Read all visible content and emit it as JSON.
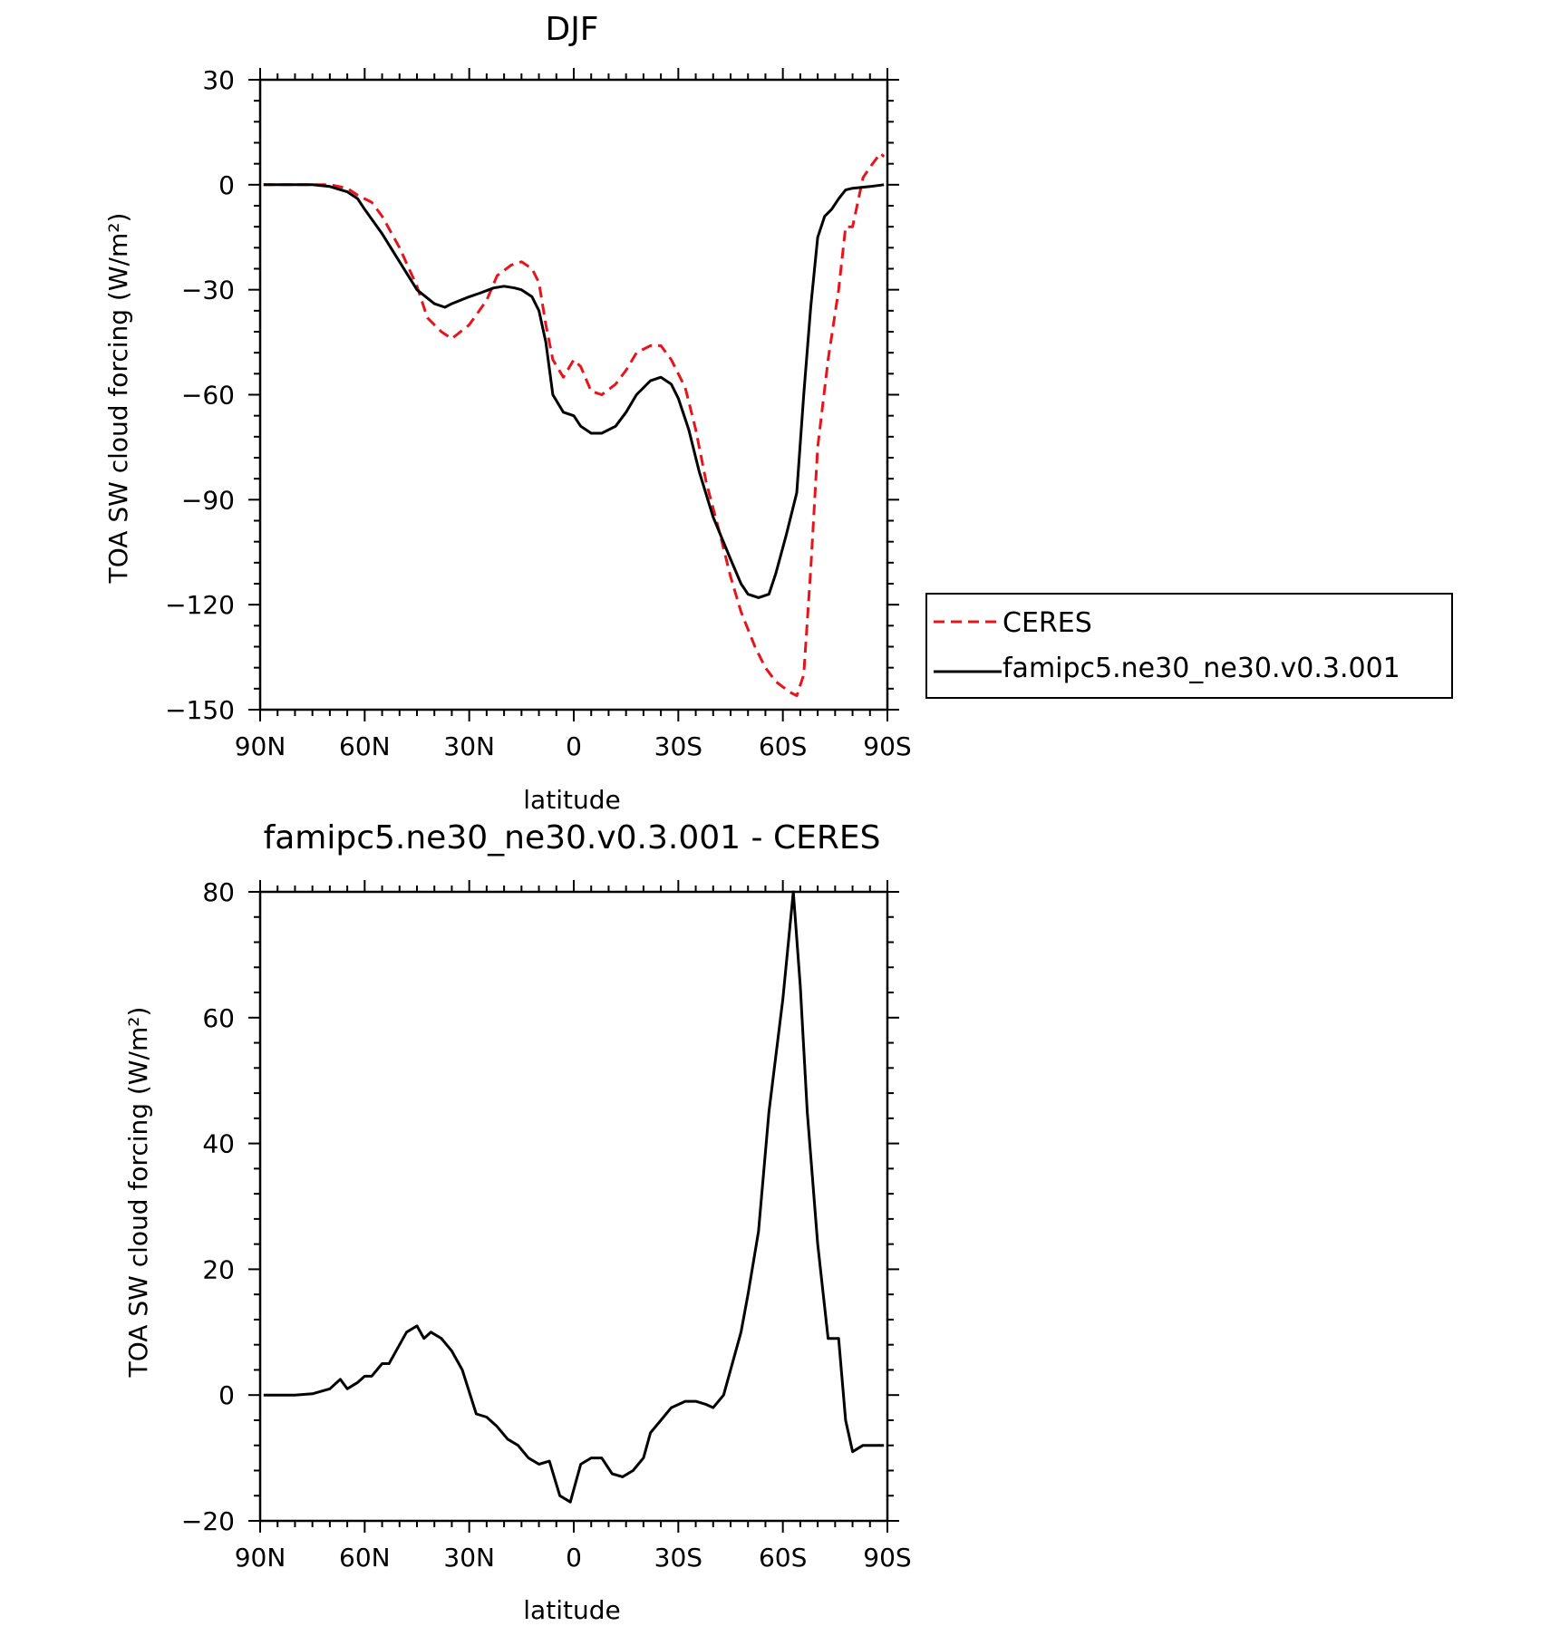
{
  "chart_data": [
    {
      "type": "line",
      "title": "DJF",
      "xlabel": "latitude",
      "ylabel": "TOA SW cloud forcing (W/m²)",
      "xlim": [
        90,
        -90
      ],
      "ylim": [
        -150,
        30
      ],
      "xticks": [
        {
          "value": 90,
          "label": "90N"
        },
        {
          "value": 60,
          "label": "60N"
        },
        {
          "value": 30,
          "label": "30N"
        },
        {
          "value": 0,
          "label": "0"
        },
        {
          "value": -30,
          "label": "30S"
        },
        {
          "value": -60,
          "label": "60S"
        },
        {
          "value": -90,
          "label": "90S"
        }
      ],
      "yticks": [
        30,
        0,
        -30,
        -60,
        -90,
        -120,
        -150
      ],
      "legend_position": "right",
      "series": [
        {
          "name": "CERES",
          "color": "#e8141b",
          "dash": true,
          "x": [
            89,
            85,
            80,
            75,
            70,
            65,
            62,
            58,
            55,
            50,
            45,
            42,
            38,
            35,
            30,
            25,
            22,
            18,
            15,
            12,
            10,
            8,
            6,
            3,
            0,
            -2,
            -5,
            -8,
            -12,
            -15,
            -18,
            -22,
            -25,
            -28,
            -32,
            -35,
            -38,
            -42,
            -45,
            -48,
            -52,
            -55,
            -58,
            -62,
            -64,
            -66,
            -68,
            -70,
            -73,
            -76,
            -78,
            -80,
            -83,
            -85,
            -88,
            -89
          ],
          "values": [
            0,
            0,
            0,
            0,
            0,
            -1,
            -3,
            -5,
            -9,
            -18,
            -29,
            -38,
            -42,
            -44,
            -40,
            -33,
            -26,
            -23,
            -22,
            -24,
            -28,
            -40,
            -50,
            -55,
            -50,
            -52,
            -59,
            -60,
            -57,
            -53,
            -48,
            -46,
            -46,
            -50,
            -58,
            -70,
            -85,
            -100,
            -112,
            -122,
            -132,
            -138,
            -142,
            -145,
            -146,
            -140,
            -110,
            -75,
            -50,
            -30,
            -12,
            -12,
            2,
            5,
            9,
            8
          ]
        },
        {
          "name": "famipc5.ne30_ne30.v0.3.001",
          "color": "#000000",
          "dash": false,
          "x": [
            89,
            85,
            80,
            75,
            70,
            65,
            62,
            60,
            55,
            50,
            45,
            40,
            37,
            35,
            30,
            27,
            23,
            20,
            17,
            15,
            12,
            10,
            8,
            6,
            3,
            0,
            -2,
            -5,
            -8,
            -12,
            -15,
            -18,
            -22,
            -25,
            -28,
            -30,
            -33,
            -36,
            -40,
            -45,
            -48,
            -50,
            -53,
            -56,
            -58,
            -61,
            -64,
            -66,
            -68,
            -70,
            -72,
            -74,
            -76,
            -78,
            -80,
            -85,
            -89
          ],
          "values": [
            0,
            0,
            0,
            0,
            -0.5,
            -2,
            -4,
            -7,
            -14,
            -22,
            -30,
            -34,
            -35,
            -34,
            -32,
            -31,
            -29.5,
            -29,
            -29.5,
            -30,
            -32,
            -36,
            -45,
            -60,
            -65,
            -66,
            -69,
            -71,
            -71,
            -69,
            -65,
            -60,
            -56,
            -55,
            -57,
            -61,
            -70,
            -82,
            -95,
            -107,
            -114,
            -117,
            -118,
            -117,
            -111,
            -100,
            -88,
            -60,
            -35,
            -15,
            -9,
            -7,
            -4,
            -1.5,
            -1,
            -0.5,
            0
          ]
        }
      ]
    },
    {
      "type": "line",
      "title": "famipc5.ne30_ne30.v0.3.001 - CERES",
      "xlabel": "latitude",
      "ylabel": "TOA SW cloud forcing (W/m²)",
      "xlim": [
        90,
        -90
      ],
      "ylim": [
        -20,
        80
      ],
      "xticks": [
        {
          "value": 90,
          "label": "90N"
        },
        {
          "value": 60,
          "label": "60N"
        },
        {
          "value": 30,
          "label": "30N"
        },
        {
          "value": 0,
          "label": "0"
        },
        {
          "value": -30,
          "label": "30S"
        },
        {
          "value": -60,
          "label": "60S"
        },
        {
          "value": -90,
          "label": "90S"
        }
      ],
      "yticks": [
        80,
        60,
        40,
        20,
        0,
        -20
      ],
      "series": [
        {
          "color": "#000000",
          "dash": false,
          "x": [
            89,
            85,
            80,
            75,
            70,
            67,
            65,
            62,
            60,
            58,
            55,
            53,
            50,
            48,
            45,
            43,
            41,
            38,
            35,
            32,
            28,
            25,
            22,
            19,
            16,
            13,
            10,
            7,
            4,
            1,
            -2,
            -5,
            -8,
            -11,
            -14,
            -17,
            -20,
            -22,
            -25,
            -28,
            -32,
            -35,
            -38,
            -40,
            -43,
            -45,
            -48,
            -50,
            -53,
            -56,
            -60,
            -63,
            -65,
            -67,
            -70,
            -73,
            -76,
            -78,
            -80,
            -83,
            -85,
            -88,
            -89
          ],
          "values": [
            0,
            0,
            0,
            0.2,
            1,
            2.5,
            1,
            2,
            3,
            3,
            5,
            5,
            8,
            10,
            11,
            9,
            10,
            9,
            7,
            4,
            -3,
            -3.5,
            -5,
            -7,
            -8,
            -10,
            -11,
            -10.5,
            -16,
            -17,
            -11,
            -10,
            -10,
            -12.5,
            -13,
            -12,
            -10,
            -6,
            -4,
            -2,
            -1,
            -1,
            -1.5,
            -2,
            0,
            4,
            10,
            16,
            26,
            45,
            63,
            80,
            65,
            45,
            24,
            9,
            9,
            -4,
            -9,
            -8,
            -8,
            -8,
            -8
          ]
        }
      ]
    }
  ]
}
